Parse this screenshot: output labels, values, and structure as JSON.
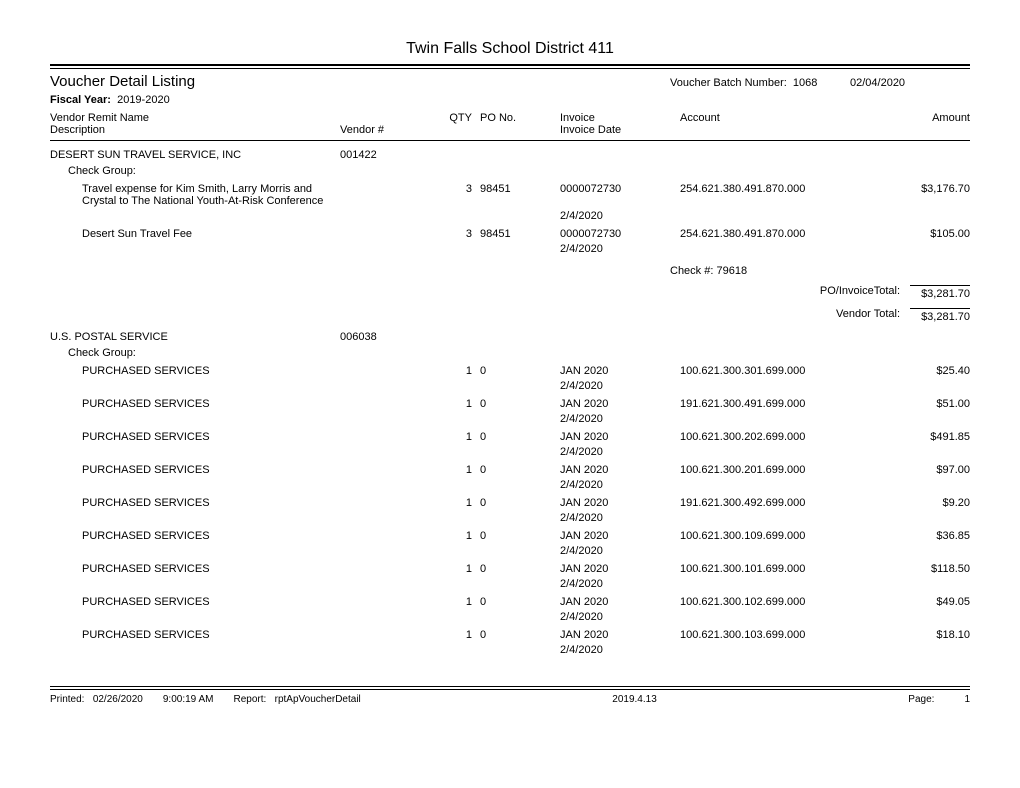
{
  "title": "Twin Falls School District 411",
  "report_title": "Voucher Detail Listing",
  "batch_label": "Voucher Batch Number:",
  "batch_number": "1068",
  "batch_date": "02/04/2020",
  "fiscal_label": "Fiscal Year:",
  "fiscal_year": "2019-2020",
  "columns": {
    "vendor_remit": "Vendor Remit Name",
    "description": "Description",
    "vendor_num": "Vendor #",
    "qty": "QTY",
    "po": "PO No.",
    "invoice": "Invoice",
    "invoice_date": "Invoice Date",
    "account": "Account",
    "amount": "Amount"
  },
  "check_group_label": "Check Group:",
  "check_num_label": "Check #:",
  "po_invoice_total_label": "PO/InvoiceTotal:",
  "vendor_total_label": "Vendor Total:",
  "vendors": [
    {
      "name": "DESERT SUN TRAVEL SERVICE, INC",
      "number": "001422",
      "lines": [
        {
          "desc": "Travel expense for Kim Smith, Larry Morris and Crystal to The National Youth-At-Risk Conference",
          "qty": "3",
          "po": "98451",
          "invoice": "0000072730",
          "invoice_date": "2/4/2020",
          "account": "254.621.380.491.870.000",
          "amount": "$3,176.70"
        },
        {
          "desc": "Desert Sun Travel Fee",
          "qty": "3",
          "po": "98451",
          "invoice": "0000072730",
          "invoice_date": "2/4/2020",
          "account": "254.621.380.491.870.000",
          "amount": "$105.00"
        }
      ],
      "check_number": "79618",
      "po_invoice_total": "$3,281.70",
      "vendor_total": "$3,281.70"
    },
    {
      "name": "U.S. POSTAL SERVICE",
      "number": "006038",
      "lines": [
        {
          "desc": "PURCHASED SERVICES",
          "qty": "1",
          "po": "0",
          "invoice": "JAN 2020",
          "invoice_date": "2/4/2020",
          "account": "100.621.300.301.699.000",
          "amount": "$25.40"
        },
        {
          "desc": "PURCHASED SERVICES",
          "qty": "1",
          "po": "0",
          "invoice": "JAN 2020",
          "invoice_date": "2/4/2020",
          "account": "191.621.300.491.699.000",
          "amount": "$51.00"
        },
        {
          "desc": "PURCHASED SERVICES",
          "qty": "1",
          "po": "0",
          "invoice": "JAN 2020",
          "invoice_date": "2/4/2020",
          "account": "100.621.300.202.699.000",
          "amount": "$491.85"
        },
        {
          "desc": "PURCHASED SERVICES",
          "qty": "1",
          "po": "0",
          "invoice": "JAN 2020",
          "invoice_date": "2/4/2020",
          "account": "100.621.300.201.699.000",
          "amount": "$97.00"
        },
        {
          "desc": "PURCHASED SERVICES",
          "qty": "1",
          "po": "0",
          "invoice": "JAN 2020",
          "invoice_date": "2/4/2020",
          "account": "191.621.300.492.699.000",
          "amount": "$9.20"
        },
        {
          "desc": "PURCHASED SERVICES",
          "qty": "1",
          "po": "0",
          "invoice": "JAN 2020",
          "invoice_date": "2/4/2020",
          "account": "100.621.300.109.699.000",
          "amount": "$36.85"
        },
        {
          "desc": "PURCHASED SERVICES",
          "qty": "1",
          "po": "0",
          "invoice": "JAN 2020",
          "invoice_date": "2/4/2020",
          "account": "100.621.300.101.699.000",
          "amount": "$118.50"
        },
        {
          "desc": "PURCHASED SERVICES",
          "qty": "1",
          "po": "0",
          "invoice": "JAN 2020",
          "invoice_date": "2/4/2020",
          "account": "100.621.300.102.699.000",
          "amount": "$49.05"
        },
        {
          "desc": "PURCHASED SERVICES",
          "qty": "1",
          "po": "0",
          "invoice": "JAN 2020",
          "invoice_date": "2/4/2020",
          "account": "100.621.300.103.699.000",
          "amount": "$18.10"
        }
      ]
    }
  ],
  "footer": {
    "printed_label": "Printed:",
    "printed_date": "02/26/2020",
    "printed_time": "9:00:19 AM",
    "report_label": "Report:",
    "report_name": "rptApVoucherDetail",
    "version": "2019.4.13",
    "page_label": "Page:",
    "page_number": "1"
  }
}
